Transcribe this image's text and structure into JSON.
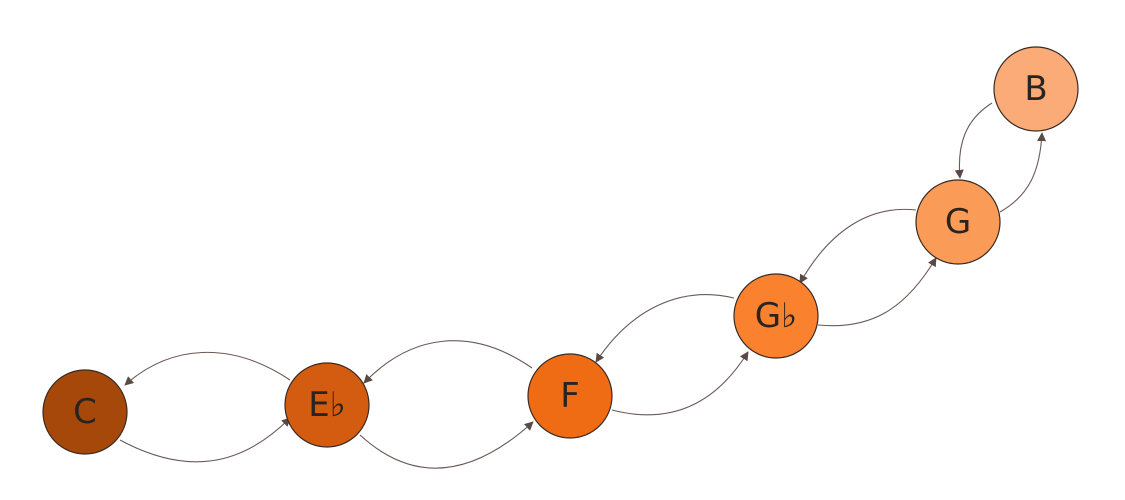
{
  "diagram": {
    "title": "",
    "nodes": [
      {
        "id": "C",
        "label": "C",
        "color": "#a6480a"
      },
      {
        "id": "Eb",
        "label": "E♭",
        "color": "#d45c10"
      },
      {
        "id": "F",
        "label": "F",
        "color": "#f06c14"
      },
      {
        "id": "Gb",
        "label": "G♭",
        "color": "#fa812e"
      },
      {
        "id": "G",
        "label": "G",
        "color": "#fb9b58"
      },
      {
        "id": "B",
        "label": "B",
        "color": "#fbab78"
      }
    ],
    "edges": [
      {
        "from": "C",
        "to": "Eb"
      },
      {
        "from": "Eb",
        "to": "C"
      },
      {
        "from": "Eb",
        "to": "F"
      },
      {
        "from": "F",
        "to": "Eb"
      },
      {
        "from": "F",
        "to": "Gb"
      },
      {
        "from": "Gb",
        "to": "F"
      },
      {
        "from": "Gb",
        "to": "G"
      },
      {
        "from": "G",
        "to": "Gb"
      },
      {
        "from": "G",
        "to": "B"
      },
      {
        "from": "B",
        "to": "G"
      }
    ]
  }
}
